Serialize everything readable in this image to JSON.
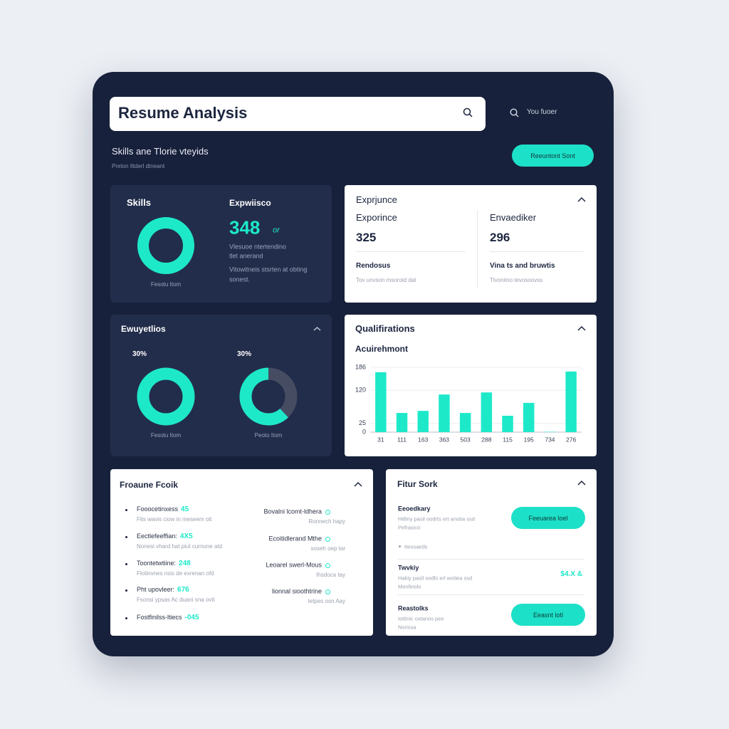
{
  "header": {
    "search_title": "Resume Analysis",
    "user": "You fuoer",
    "subtitle": "Skills ane Tlorie vteyids",
    "note": "Preton Iltderl dtneant",
    "button": "Reeuntont Sont"
  },
  "skills": {
    "title": "Skills",
    "donut_share": 100,
    "donut_label": "Fesotu Itom",
    "stat_title": "Expwiisco",
    "stat_value": "348",
    "stat_unit": "or",
    "lines": [
      "Vlesuoe ntertendino",
      "tlet anerand",
      "Vitowitneis stsrten at obting",
      "sonest."
    ]
  },
  "experience": {
    "title": "Exprjunce",
    "columns": [
      {
        "heading": "Exporince",
        "value": "325",
        "label": "Rendosus",
        "text": "Tov unvson msoroid dat"
      },
      {
        "heading": "Envaediker",
        "value": "296",
        "label": "Vina ts and bruwtis",
        "text": "Tlvoniino tevosoovss"
      }
    ]
  },
  "expectations": {
    "title": "Ewuyetlios",
    "donuts": [
      {
        "percent": "30%",
        "share": 100,
        "label": "Fesotu Itom"
      },
      {
        "percent": "30%",
        "share": 62,
        "label": "Peoto Itom"
      }
    ]
  },
  "qualifications": {
    "title": "Qualifirations",
    "chart_data": {
      "type": "bar",
      "title": "Acuirehmont",
      "categories": [
        "31",
        "111",
        "163",
        "363",
        "503",
        "288",
        "115",
        "195",
        "734",
        "276"
      ],
      "values": [
        172,
        55,
        61,
        108,
        55,
        114,
        47,
        84,
        1,
        174
      ],
      "color": "#1de9c9",
      "ylim": [
        0,
        186
      ],
      "yticks": [
        0,
        25,
        120,
        186
      ],
      "grid": true
    }
  },
  "focus": {
    "title": "Froaune Fcoik",
    "items": [
      {
        "name": "Fooocetinxess",
        "value": "45",
        "text": "Fits wavis ciow in meseem olt"
      },
      {
        "name": "Eectlefeeffian:",
        "value": "4X5",
        "text": "Nonesi vhard hat piut curnune atd"
      },
      {
        "name": "Toontetwtiine:",
        "value": "248",
        "text": "Flotinvnes nsis de exrenan ofd"
      },
      {
        "name": "Pht upovleer:",
        "value": "676",
        "text": "Fsonsi ypsas Ac duani sna ovtl"
      },
      {
        "name": "Fostfinilss-ltiecs",
        "value": "-045"
      }
    ],
    "side_items": [
      {
        "name": "Bovalni lcomt-ldhera",
        "text": "Ronnech hapy"
      },
      {
        "name": "Ecoitidlerand Mthe",
        "text": "soseh oep tar"
      },
      {
        "name": "Leoarel swerl-Mous",
        "text": "Ihsdoca tay"
      },
      {
        "name": "lionnal sioothtrine",
        "text": "tetpes osn Aay"
      }
    ]
  },
  "future": {
    "title": "Fitur Sork",
    "items": [
      {
        "name": "Eeoedkary",
        "lines": [
          "Hitliny pasil oodrts ert anotia ssd",
          "Pefrasico"
        ],
        "button": "Feeuarea loel",
        "tag": "Iteosaeds"
      },
      {
        "name": "Twvkiy",
        "lines": [
          "Hakiy pasil oodls erl wotiea ssd",
          "Monfeiolo"
        ],
        "value": "$4.X &"
      },
      {
        "name": "Reastolks",
        "lines": [
          "Iottinic oxtanos pee",
          "Norissa"
        ],
        "button": "Eeasnt lotl"
      }
    ]
  }
}
